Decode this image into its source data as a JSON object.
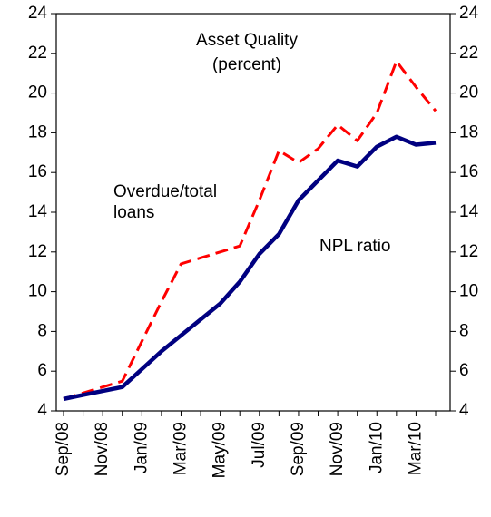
{
  "chart_data": {
    "type": "line",
    "title": "Asset Quality",
    "subtitle": "(percent)",
    "categories": [
      "Sep/08",
      null,
      "Nov/08",
      null,
      "Jan/09",
      null,
      "Mar/09",
      null,
      "May/09",
      null,
      "Jul/09",
      null,
      "Sep/09",
      null,
      "Nov/09",
      null,
      "Jan/10",
      null,
      "Mar/10",
      null
    ],
    "series": [
      {
        "name": "Overdue/total loans",
        "color": "#ff0000",
        "dash": true,
        "values": [
          4.6,
          4.9,
          5.2,
          5.5,
          7.5,
          9.5,
          11.4,
          11.7,
          12.0,
          12.3,
          14.6,
          17.1,
          16.5,
          17.2,
          18.4,
          17.6,
          19.0,
          21.6,
          20.3,
          19.1
        ]
      },
      {
        "name": "NPL ratio",
        "color": "#000080",
        "dash": false,
        "values": [
          4.6,
          4.8,
          5.0,
          5.2,
          6.1,
          7.0,
          7.8,
          8.6,
          9.4,
          10.5,
          11.9,
          12.9,
          14.6,
          15.6,
          16.6,
          16.3,
          17.3,
          17.8,
          17.4,
          17.5
        ]
      }
    ],
    "ylim": [
      4,
      24
    ],
    "yticks": [
      4,
      6,
      8,
      10,
      12,
      14,
      16,
      18,
      20,
      22,
      24
    ],
    "y2lim": [
      4,
      24
    ],
    "y2ticks": [
      4,
      6,
      8,
      10,
      12,
      14,
      16,
      18,
      20,
      22,
      24
    ],
    "grid": false
  }
}
